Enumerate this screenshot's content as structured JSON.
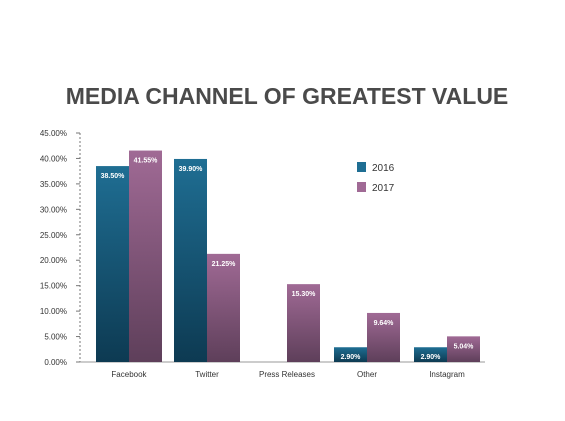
{
  "chart_data": {
    "type": "bar",
    "title": "MEDIA CHANNEL OF GREATEST VALUE",
    "categories": [
      "Facebook",
      "Twitter",
      "Press Releases",
      "Other",
      "Instagram"
    ],
    "series": [
      {
        "name": "2016",
        "values": [
          38.5,
          39.9,
          null,
          2.9,
          2.9
        ],
        "labels": [
          "38.50%",
          "39.90%",
          "",
          "2.90%",
          "2.90%"
        ],
        "color_top": "#1f6e93",
        "color_bottom": "#0d3a52"
      },
      {
        "name": "2017",
        "values": [
          41.55,
          21.25,
          15.3,
          9.64,
          5.04
        ],
        "labels": [
          "41.55%",
          "21.25%",
          "15.30%",
          "9.64%",
          "5.04%"
        ],
        "color_top": "#a06a95",
        "color_bottom": "#5e3f5a"
      }
    ],
    "yticks": [
      "0.00%",
      "5.00%",
      "10.00%",
      "15.00%",
      "20.00%",
      "25.00%",
      "30.00%",
      "35.00%",
      "40.00%",
      "45.00%"
    ],
    "ylim": [
      0,
      45
    ],
    "ytick_step": 5,
    "legend_position": "top-right",
    "grid": false
  }
}
